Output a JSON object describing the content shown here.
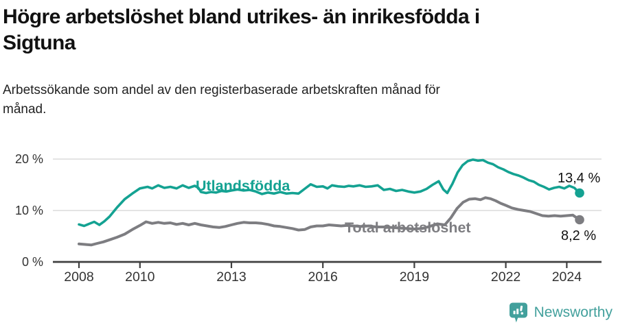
{
  "header": {
    "title_lines": [
      "Högre arbetslöshet bland utrikes- än inrikesfödda i",
      "Sigtuna"
    ],
    "subtitle_lines": [
      "Arbetssökande som andel av den registerbaserade arbetskraften månad för",
      "månad."
    ]
  },
  "colors": {
    "teal": "#14a292",
    "gray": "#7d7d81",
    "grid": "#dbdbdb",
    "axis": "#3f3f3f",
    "tick_text": "#333333",
    "value_text": "#111111",
    "logo": "#42a09c"
  },
  "footer": {
    "brand": "Newsworthy",
    "logo_icon": "chart-speech-bubble-icon"
  },
  "chart_data": {
    "type": "line",
    "title": "Högre arbetslöshet bland utrikes- än inrikesfödda i Sigtuna",
    "subtitle": "Arbetssökande som andel av den registerbaserade arbetskraften månad för månad.",
    "xlabel": "",
    "ylabel": "",
    "unit": "%",
    "grid": "horizontal",
    "legend_position": "inline-labels",
    "xlim": [
      2007.15,
      2024.6
    ],
    "ylim": [
      0,
      21.5
    ],
    "x_ticks": [
      2008,
      2010,
      2013,
      2016,
      2019,
      2022,
      2024
    ],
    "y_ticks": [
      {
        "value": 0,
        "label": "0 %"
      },
      {
        "value": 10,
        "label": "10 %"
      },
      {
        "value": 20,
        "label": "20 %"
      }
    ],
    "series": [
      {
        "name": "Utlandsfödda",
        "color": "#14a292",
        "end_label": "13,4 %",
        "end_value": 13.4,
        "points": [
          [
            2008.0,
            7.3
          ],
          [
            2008.17,
            7.0
          ],
          [
            2008.33,
            7.4
          ],
          [
            2008.5,
            7.8
          ],
          [
            2008.67,
            7.2
          ],
          [
            2008.83,
            7.9
          ],
          [
            2009.0,
            8.8
          ],
          [
            2009.25,
            10.6
          ],
          [
            2009.5,
            12.2
          ],
          [
            2009.75,
            13.3
          ],
          [
            2010.0,
            14.3
          ],
          [
            2010.25,
            14.6
          ],
          [
            2010.4,
            14.3
          ],
          [
            2010.6,
            14.9
          ],
          [
            2010.8,
            14.4
          ],
          [
            2011.0,
            14.6
          ],
          [
            2011.2,
            14.3
          ],
          [
            2011.4,
            14.9
          ],
          [
            2011.6,
            14.4
          ],
          [
            2011.8,
            14.8
          ],
          [
            2011.92,
            14.4
          ],
          [
            2012.0,
            13.6
          ],
          [
            2012.17,
            13.4
          ],
          [
            2012.33,
            13.6
          ],
          [
            2012.5,
            13.5
          ],
          [
            2012.67,
            13.8
          ],
          [
            2012.83,
            13.7
          ],
          [
            2013.0,
            13.9
          ],
          [
            2013.2,
            14.1
          ],
          [
            2013.4,
            13.9
          ],
          [
            2013.6,
            14.0
          ],
          [
            2013.8,
            13.7
          ],
          [
            2014.0,
            13.2
          ],
          [
            2014.2,
            13.5
          ],
          [
            2014.4,
            13.3
          ],
          [
            2014.6,
            13.6
          ],
          [
            2014.8,
            13.3
          ],
          [
            2015.0,
            13.4
          ],
          [
            2015.2,
            13.3
          ],
          [
            2015.4,
            14.2
          ],
          [
            2015.6,
            15.1
          ],
          [
            2015.8,
            14.6
          ],
          [
            2016.0,
            14.7
          ],
          [
            2016.15,
            14.3
          ],
          [
            2016.3,
            14.9
          ],
          [
            2016.5,
            14.7
          ],
          [
            2016.7,
            14.6
          ],
          [
            2016.85,
            14.8
          ],
          [
            2017.0,
            14.7
          ],
          [
            2017.2,
            14.9
          ],
          [
            2017.4,
            14.6
          ],
          [
            2017.6,
            14.7
          ],
          [
            2017.8,
            14.9
          ],
          [
            2018.0,
            14.0
          ],
          [
            2018.2,
            14.2
          ],
          [
            2018.4,
            13.8
          ],
          [
            2018.6,
            14.0
          ],
          [
            2018.8,
            13.7
          ],
          [
            2019.0,
            13.5
          ],
          [
            2019.2,
            13.7
          ],
          [
            2019.4,
            14.2
          ],
          [
            2019.6,
            15.0
          ],
          [
            2019.8,
            15.7
          ],
          [
            2019.95,
            14.1
          ],
          [
            2020.08,
            13.4
          ],
          [
            2020.25,
            15.2
          ],
          [
            2020.42,
            17.4
          ],
          [
            2020.58,
            18.8
          ],
          [
            2020.75,
            19.6
          ],
          [
            2020.92,
            19.9
          ],
          [
            2021.08,
            19.7
          ],
          [
            2021.25,
            19.8
          ],
          [
            2021.42,
            19.3
          ],
          [
            2021.58,
            19.0
          ],
          [
            2021.75,
            18.4
          ],
          [
            2021.92,
            18.0
          ],
          [
            2022.08,
            17.5
          ],
          [
            2022.25,
            17.1
          ],
          [
            2022.42,
            16.8
          ],
          [
            2022.58,
            16.4
          ],
          [
            2022.75,
            15.9
          ],
          [
            2022.92,
            15.6
          ],
          [
            2023.08,
            15.0
          ],
          [
            2023.25,
            14.6
          ],
          [
            2023.42,
            14.1
          ],
          [
            2023.58,
            14.4
          ],
          [
            2023.75,
            14.6
          ],
          [
            2023.92,
            14.3
          ],
          [
            2024.08,
            14.8
          ],
          [
            2024.25,
            14.4
          ],
          [
            2024.42,
            13.4
          ]
        ]
      },
      {
        "name": "Total arbetslöshet",
        "color": "#7d7d81",
        "end_label": "8,2 %",
        "end_value": 8.2,
        "points": [
          [
            2008.0,
            3.5
          ],
          [
            2008.2,
            3.4
          ],
          [
            2008.4,
            3.3
          ],
          [
            2008.6,
            3.6
          ],
          [
            2008.8,
            3.9
          ],
          [
            2009.0,
            4.3
          ],
          [
            2009.25,
            4.8
          ],
          [
            2009.5,
            5.4
          ],
          [
            2009.75,
            6.3
          ],
          [
            2010.0,
            7.1
          ],
          [
            2010.2,
            7.8
          ],
          [
            2010.4,
            7.5
          ],
          [
            2010.6,
            7.7
          ],
          [
            2010.8,
            7.5
          ],
          [
            2011.0,
            7.6
          ],
          [
            2011.2,
            7.3
          ],
          [
            2011.4,
            7.5
          ],
          [
            2011.6,
            7.2
          ],
          [
            2011.8,
            7.5
          ],
          [
            2012.0,
            7.2
          ],
          [
            2012.2,
            7.0
          ],
          [
            2012.4,
            6.8
          ],
          [
            2012.6,
            6.7
          ],
          [
            2012.8,
            6.9
          ],
          [
            2013.0,
            7.2
          ],
          [
            2013.2,
            7.5
          ],
          [
            2013.4,
            7.7
          ],
          [
            2013.6,
            7.6
          ],
          [
            2013.8,
            7.6
          ],
          [
            2014.0,
            7.5
          ],
          [
            2014.2,
            7.3
          ],
          [
            2014.4,
            7.0
          ],
          [
            2014.6,
            6.9
          ],
          [
            2014.8,
            6.7
          ],
          [
            2015.0,
            6.5
          ],
          [
            2015.2,
            6.2
          ],
          [
            2015.4,
            6.3
          ],
          [
            2015.6,
            6.8
          ],
          [
            2015.8,
            7.0
          ],
          [
            2016.0,
            7.0
          ],
          [
            2016.2,
            7.2
          ],
          [
            2016.4,
            7.1
          ],
          [
            2016.6,
            7.0
          ],
          [
            2016.8,
            7.1
          ],
          [
            2017.0,
            7.0
          ],
          [
            2017.25,
            6.9
          ],
          [
            2017.5,
            7.0
          ],
          [
            2017.75,
            6.8
          ],
          [
            2018.0,
            6.8
          ],
          [
            2018.25,
            6.7
          ],
          [
            2018.5,
            6.6
          ],
          [
            2018.75,
            6.5
          ],
          [
            2019.0,
            6.4
          ],
          [
            2019.25,
            6.5
          ],
          [
            2019.5,
            6.9
          ],
          [
            2019.75,
            7.4
          ],
          [
            2020.0,
            7.2
          ],
          [
            2020.2,
            8.6
          ],
          [
            2020.4,
            10.4
          ],
          [
            2020.6,
            11.6
          ],
          [
            2020.8,
            12.2
          ],
          [
            2021.0,
            12.3
          ],
          [
            2021.17,
            12.1
          ],
          [
            2021.33,
            12.5
          ],
          [
            2021.5,
            12.3
          ],
          [
            2021.67,
            11.9
          ],
          [
            2021.83,
            11.4
          ],
          [
            2022.0,
            11.0
          ],
          [
            2022.2,
            10.5
          ],
          [
            2022.4,
            10.2
          ],
          [
            2022.6,
            10.0
          ],
          [
            2022.8,
            9.8
          ],
          [
            2023.0,
            9.4
          ],
          [
            2023.2,
            9.0
          ],
          [
            2023.4,
            8.9
          ],
          [
            2023.6,
            9.0
          ],
          [
            2023.8,
            8.9
          ],
          [
            2024.0,
            9.0
          ],
          [
            2024.2,
            9.1
          ],
          [
            2024.42,
            8.2
          ]
        ]
      }
    ]
  }
}
